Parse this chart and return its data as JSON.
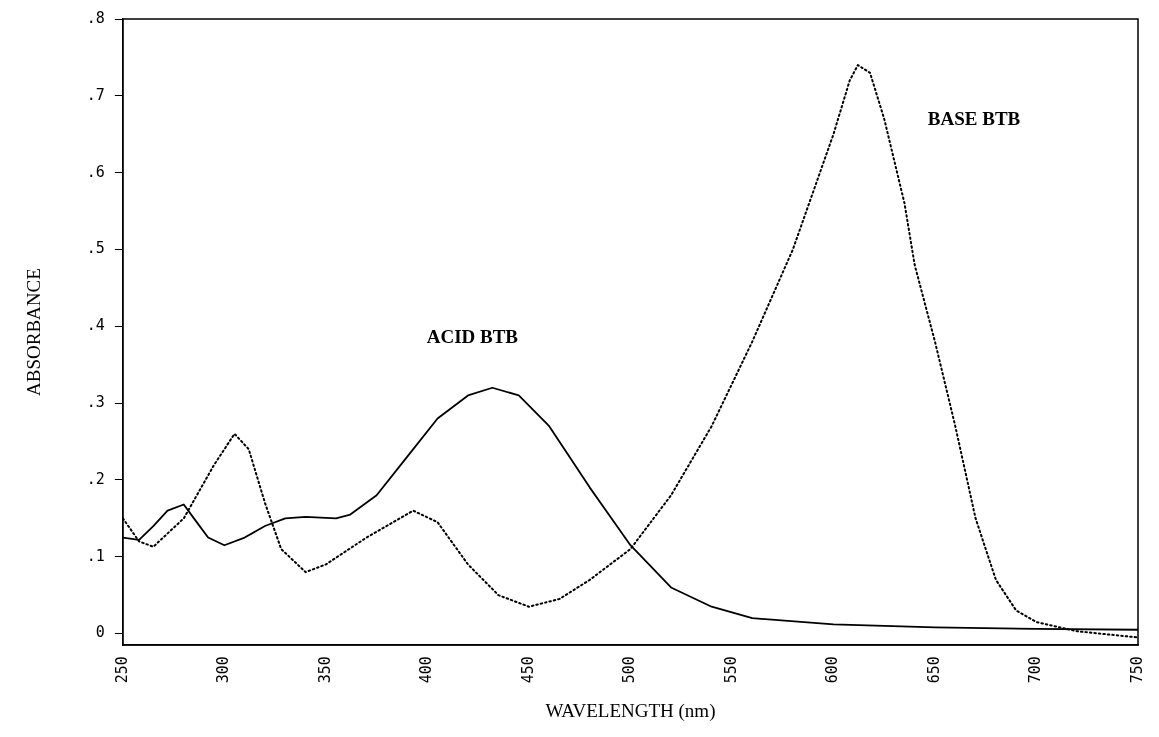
{
  "chart_data": {
    "type": "line",
    "xlabel": "WAVELENGTH (nm)",
    "ylabel": "ABSORBANCE",
    "xlim": [
      250,
      750
    ],
    "xticks": [
      250,
      300,
      350,
      400,
      450,
      500,
      550,
      600,
      650,
      700,
      750
    ],
    "ylim": [
      -0.015,
      0.8
    ],
    "yticks": [
      0,
      {
        "value": 0.1,
        "label": ".1"
      },
      {
        "value": 0.2,
        "label": ".2"
      },
      {
        "value": 0.3,
        "label": ".3"
      },
      {
        "value": 0.4,
        "label": ".4"
      },
      {
        "value": 0.5,
        "label": ".5"
      },
      {
        "value": 0.6,
        "label": ".6"
      },
      {
        "value": 0.7,
        "label": ".7"
      },
      {
        "value": 0.8,
        "label": ".8"
      }
    ],
    "grid": false,
    "legend": false,
    "marker": "none",
    "series": [
      {
        "name": "ACID BTB",
        "color": "#000000",
        "line_style": "solid",
        "x": [
          250,
          258,
          265,
          272,
          280,
          285,
          292,
          300,
          310,
          320,
          330,
          340,
          355,
          362,
          375,
          390,
          405,
          420,
          432,
          445,
          460,
          480,
          500,
          520,
          540,
          560,
          600,
          650,
          700,
          750
        ],
        "values": [
          0.125,
          0.122,
          0.14,
          0.16,
          0.168,
          0.15,
          0.125,
          0.115,
          0.125,
          0.14,
          0.15,
          0.152,
          0.15,
          0.155,
          0.18,
          0.23,
          0.28,
          0.31,
          0.32,
          0.31,
          0.27,
          0.19,
          0.115,
          0.06,
          0.035,
          0.02,
          0.012,
          0.008,
          0.006,
          0.005
        ]
      },
      {
        "name": "BASE BTB",
        "color": "#000000",
        "line_style": "dotted",
        "x": [
          250,
          258,
          265,
          280,
          295,
          305,
          312,
          320,
          328,
          340,
          350,
          370,
          393,
          405,
          420,
          435,
          450,
          465,
          480,
          500,
          520,
          540,
          560,
          580,
          600,
          608,
          612,
          618,
          625,
          635,
          640,
          650,
          660,
          670,
          680,
          690,
          700,
          720,
          750
        ],
        "values": [
          0.15,
          0.12,
          0.113,
          0.15,
          0.22,
          0.26,
          0.24,
          0.17,
          0.11,
          0.08,
          0.09,
          0.125,
          0.16,
          0.145,
          0.09,
          0.05,
          0.035,
          0.045,
          0.07,
          0.11,
          0.18,
          0.27,
          0.38,
          0.5,
          0.65,
          0.72,
          0.74,
          0.73,
          0.67,
          0.56,
          0.48,
          0.38,
          0.27,
          0.15,
          0.07,
          0.03,
          0.015,
          0.003,
          -0.005
        ]
      }
    ]
  }
}
